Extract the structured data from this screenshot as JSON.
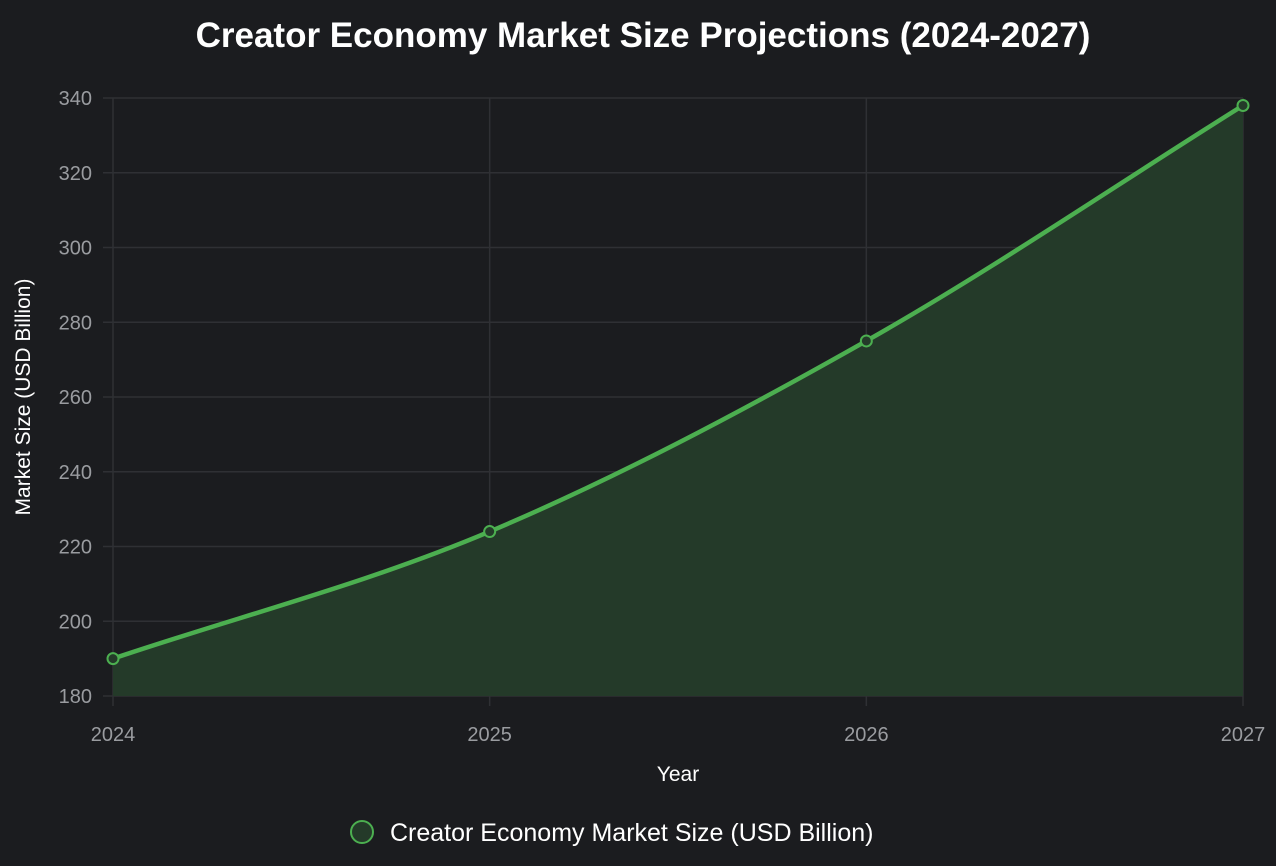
{
  "chart_data": {
    "type": "area",
    "title": "Creator Economy Market Size Projections (2024-2027)",
    "xlabel": "Year",
    "ylabel": "Market Size (USD Billion)",
    "categories": [
      "2024",
      "2025",
      "2026",
      "2027"
    ],
    "ylim": [
      180,
      340
    ],
    "yticks": [
      "180",
      "200",
      "220",
      "240",
      "260",
      "280",
      "300",
      "320",
      "340"
    ],
    "series": [
      {
        "name": "Creator Economy Market Size (USD Billion)",
        "values": [
          190,
          224,
          275,
          338
        ]
      }
    ],
    "grid": true,
    "legend_position": "bottom",
    "colors": {
      "line": "#4caf50",
      "fill": "#243a29",
      "grid": "#2f3034",
      "background": "#1b1c1f"
    }
  }
}
